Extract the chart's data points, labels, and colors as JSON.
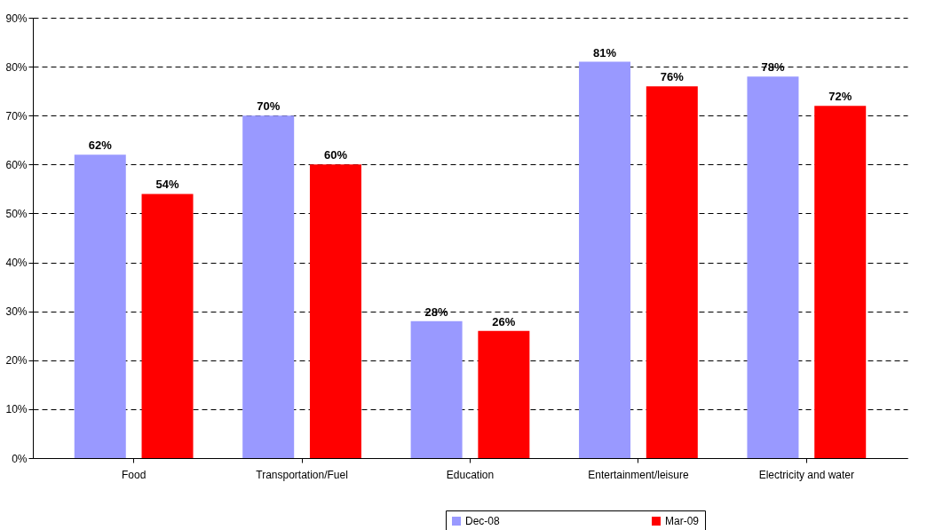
{
  "chart_data": {
    "type": "bar",
    "categories": [
      "Food",
      "Transportation/Fuel",
      "Education",
      "Entertainment/leisure",
      "Electricity and water"
    ],
    "series": [
      {
        "name": "Dec-08",
        "color": "#9999ff",
        "values": [
          62,
          70,
          28,
          81,
          78
        ],
        "value_labels": [
          "62%",
          "70%",
          "28%",
          "81%",
          "78%"
        ]
      },
      {
        "name": "Mar-09",
        "color": "#ff0000",
        "values": [
          54,
          60,
          26,
          76,
          72
        ],
        "value_labels": [
          "54%",
          "60%",
          "26%",
          "76%",
          "72%"
        ]
      }
    ],
    "ylim": [
      0,
      90
    ],
    "yticks": [
      {
        "value": 0,
        "label": "0%"
      },
      {
        "value": 10,
        "label": "10%"
      },
      {
        "value": 20,
        "label": "20%"
      },
      {
        "value": 30,
        "label": "30%"
      },
      {
        "value": 40,
        "label": "40%"
      },
      {
        "value": 50,
        "label": "50%"
      },
      {
        "value": 60,
        "label": "60%"
      },
      {
        "value": 70,
        "label": "70%"
      },
      {
        "value": 80,
        "label": "80%"
      },
      {
        "value": 90,
        "label": "90%"
      }
    ],
    "grid": "y",
    "legend": "bottom"
  }
}
